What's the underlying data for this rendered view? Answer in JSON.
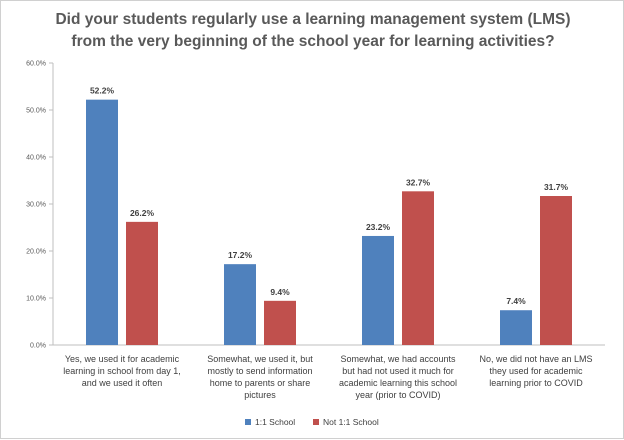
{
  "chart_data": {
    "type": "bar",
    "title_lines": [
      "Did your students regularly use a learning management system (LMS)",
      "from the very beginning of the school year for learning activities?"
    ],
    "categories": [
      [
        "Yes, we used it for academic",
        "learning in school from day 1,",
        "and we used it often"
      ],
      [
        "Somewhat, we used it, but",
        "mostly to send information",
        "home to parents or share",
        "pictures"
      ],
      [
        "Somewhat, we had accounts",
        "but had not used it much for",
        "academic learning this school",
        "year (prior to COVID)"
      ],
      [
        "No, we did not have an LMS",
        "they used for academic",
        "learning prior to COVID"
      ]
    ],
    "series": [
      {
        "name": "1:1 School",
        "color": "#4f81bd",
        "values": [
          52.2,
          17.2,
          23.2,
          7.4
        ],
        "labels": [
          "52.2%",
          "17.2%",
          "23.2%",
          "7.4%"
        ]
      },
      {
        "name": "Not 1:1 School",
        "color": "#c0504d",
        "values": [
          26.2,
          9.4,
          32.7,
          31.7
        ],
        "labels": [
          "26.2%",
          "9.4%",
          "32.7%",
          "31.7%"
        ]
      }
    ],
    "ylim": [
      0,
      60
    ],
    "yticks": [
      0,
      10,
      20,
      30,
      40,
      50,
      60
    ],
    "ytick_labels": [
      "0.0%",
      "10.0%",
      "20.0%",
      "30.0%",
      "40.0%",
      "50.0%",
      "60.0%"
    ],
    "grid": false,
    "legend_position": "bottom"
  }
}
